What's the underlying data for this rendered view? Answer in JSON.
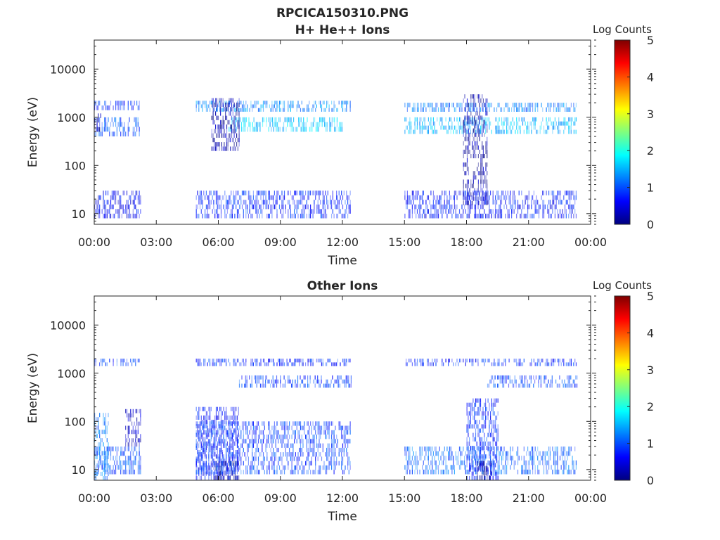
{
  "figure": {
    "title": "RPCICA150310.PNG"
  },
  "colors": {
    "colormap": [
      "#00007f",
      "#0000ff",
      "#007fff",
      "#00ffff",
      "#7fff7f",
      "#ffff00",
      "#ff7f00",
      "#ff0000",
      "#7f0000"
    ],
    "axis": "#262626",
    "background": "#ffffff"
  },
  "chart_data": [
    {
      "type": "heatmap",
      "title": "H+ He++ Ions",
      "xlabel": "Time",
      "ylabel": "Energy (eV)",
      "y_scale": "log",
      "ylim": [
        6,
        40000
      ],
      "xlim": [
        "00:00",
        "24:00"
      ],
      "x_tick_labels": [
        "00:00",
        "03:00",
        "06:00",
        "09:00",
        "12:00",
        "15:00",
        "18:00",
        "21:00",
        "00:00"
      ],
      "y_tick_labels": [
        "10",
        "100",
        "1000",
        "10000"
      ],
      "y_tick_values": [
        10,
        100,
        1000,
        10000
      ],
      "colorbar": {
        "label": "Log Counts",
        "range": [
          0,
          5
        ],
        "ticks": [
          "0",
          "1",
          "2",
          "3",
          "4",
          "5"
        ]
      },
      "data_intervals": [
        [
          "00:00",
          "02:15"
        ],
        [
          "04:55",
          "12:25"
        ],
        [
          "15:00",
          "23:20"
        ]
      ],
      "features": [
        {
          "time": [
            "00:00",
            "02:10"
          ],
          "energy": [
            1400,
            2200
          ],
          "log_counts": 0.8
        },
        {
          "time": [
            "00:00",
            "02:10"
          ],
          "energy": [
            400,
            1000
          ],
          "log_counts": 1.0
        },
        {
          "time": [
            "00:00",
            "00:20"
          ],
          "energy": [
            500,
            1200
          ],
          "log_counts": 0.3
        },
        {
          "time": [
            "00:00",
            "02:15"
          ],
          "energy": [
            8,
            30
          ],
          "log_counts": 0.6
        },
        {
          "time": [
            "04:55",
            "12:25"
          ],
          "energy": [
            1300,
            2200
          ],
          "log_counts": 1.3
        },
        {
          "time": [
            "06:30",
            "12:00"
          ],
          "energy": [
            500,
            1000
          ],
          "log_counts": 1.6
        },
        {
          "time": [
            "05:40",
            "07:00"
          ],
          "energy": [
            200,
            2500
          ],
          "log_counts": 0.2
        },
        {
          "time": [
            "04:55",
            "12:25"
          ],
          "energy": [
            8,
            30
          ],
          "log_counts": 0.8
        },
        {
          "time": [
            "15:00",
            "23:20"
          ],
          "energy": [
            1300,
            2000
          ],
          "log_counts": 1.2
        },
        {
          "time": [
            "15:00",
            "23:20"
          ],
          "energy": [
            450,
            1000
          ],
          "log_counts": 1.5
        },
        {
          "time": [
            "17:50",
            "19:00"
          ],
          "energy": [
            15,
            3000
          ],
          "log_counts": 0.2
        },
        {
          "time": [
            "15:00",
            "23:20"
          ],
          "energy": [
            8,
            30
          ],
          "log_counts": 0.7
        }
      ]
    },
    {
      "type": "heatmap",
      "title": "Other Ions",
      "xlabel": "Time",
      "ylabel": "Energy (eV)",
      "y_scale": "log",
      "ylim": [
        6,
        40000
      ],
      "xlim": [
        "00:00",
        "24:00"
      ],
      "x_tick_labels": [
        "00:00",
        "03:00",
        "06:00",
        "09:00",
        "12:00",
        "15:00",
        "18:00",
        "21:00",
        "00:00"
      ],
      "y_tick_labels": [
        "10",
        "100",
        "1000",
        "10000"
      ],
      "y_tick_values": [
        10,
        100,
        1000,
        10000
      ],
      "colorbar": {
        "label": "Log Counts",
        "range": [
          0,
          5
        ],
        "ticks": [
          "0",
          "1",
          "2",
          "3",
          "4",
          "5"
        ]
      },
      "data_intervals": [
        [
          "00:00",
          "02:15"
        ],
        [
          "04:55",
          "12:25"
        ],
        [
          "15:00",
          "23:20"
        ]
      ],
      "features": [
        {
          "time": [
            "00:00",
            "00:40"
          ],
          "energy": [
            6,
            150
          ],
          "log_counts": 1.2
        },
        {
          "time": [
            "00:00",
            "02:15"
          ],
          "energy": [
            8,
            30
          ],
          "log_counts": 1.0
        },
        {
          "time": [
            "01:30",
            "02:15"
          ],
          "energy": [
            30,
            180
          ],
          "log_counts": 0.4
        },
        {
          "time": [
            "00:00",
            "02:10"
          ],
          "energy": [
            1400,
            2000
          ],
          "log_counts": 0.9
        },
        {
          "time": [
            "04:55",
            "07:00"
          ],
          "energy": [
            6,
            200
          ],
          "log_counts": 0.7
        },
        {
          "time": [
            "05:50",
            "07:00"
          ],
          "energy": [
            6,
            15
          ],
          "log_counts": 0.0
        },
        {
          "time": [
            "04:55",
            "12:25"
          ],
          "energy": [
            1400,
            2000
          ],
          "log_counts": 0.8
        },
        {
          "time": [
            "07:00",
            "12:25"
          ],
          "energy": [
            500,
            900
          ],
          "log_counts": 0.9
        },
        {
          "time": [
            "04:55",
            "12:25"
          ],
          "energy": [
            8,
            100
          ],
          "log_counts": 0.9
        },
        {
          "time": [
            "15:00",
            "23:20"
          ],
          "energy": [
            8,
            30
          ],
          "log_counts": 1.1
        },
        {
          "time": [
            "18:00",
            "19:30"
          ],
          "energy": [
            6,
            300
          ],
          "log_counts": 0.8
        },
        {
          "time": [
            "18:30",
            "19:10"
          ],
          "energy": [
            6,
            15
          ],
          "log_counts": 0.0
        },
        {
          "time": [
            "15:00",
            "23:20"
          ],
          "energy": [
            1400,
            2000
          ],
          "log_counts": 0.8
        },
        {
          "time": [
            "19:00",
            "23:20"
          ],
          "energy": [
            500,
            900
          ],
          "log_counts": 0.9
        }
      ]
    }
  ]
}
